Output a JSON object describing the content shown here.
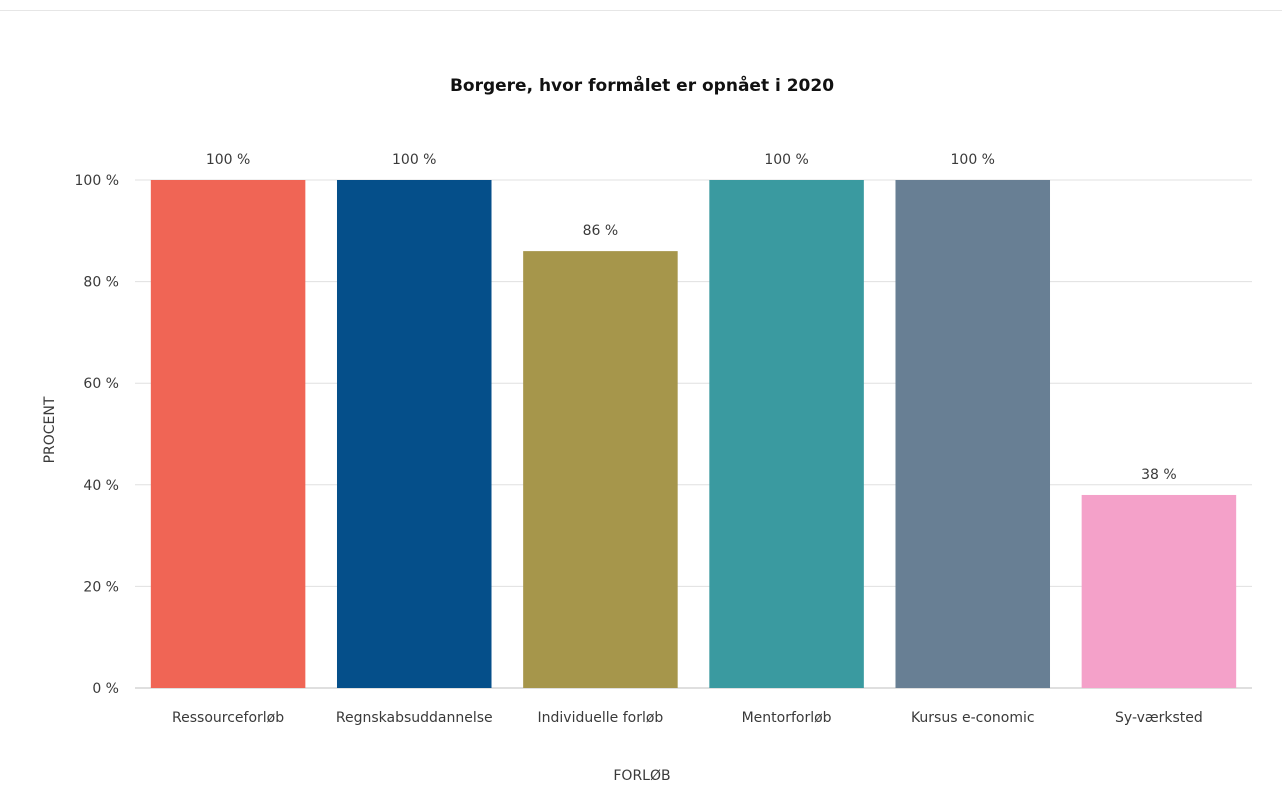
{
  "chart_data": {
    "type": "bar",
    "title": "Borgere, hvor formålet er opnået i 2020",
    "xlabel": "FORLØB",
    "ylabel": "PROCENT",
    "ylim": [
      0,
      100
    ],
    "y_ticks": [
      0,
      20,
      40,
      60,
      80,
      100
    ],
    "y_tick_suffix": " %",
    "grid": true,
    "legend": "none",
    "categories": [
      "Ressourceforløb",
      "Regnskabsuddannelse",
      "Individuelle forløb",
      "Mentorforløb",
      "Kursus e-conomic",
      "Sy-værksted"
    ],
    "values": [
      100,
      100,
      86,
      100,
      100,
      38
    ],
    "value_labels": [
      "100 %",
      "100 %",
      "86 %",
      "100 %",
      "100 %",
      "38 %"
    ],
    "colors": [
      "#f06555",
      "#054f8a",
      "#a6964b",
      "#3a9aa0",
      "#687f94",
      "#f4a1c9"
    ]
  }
}
